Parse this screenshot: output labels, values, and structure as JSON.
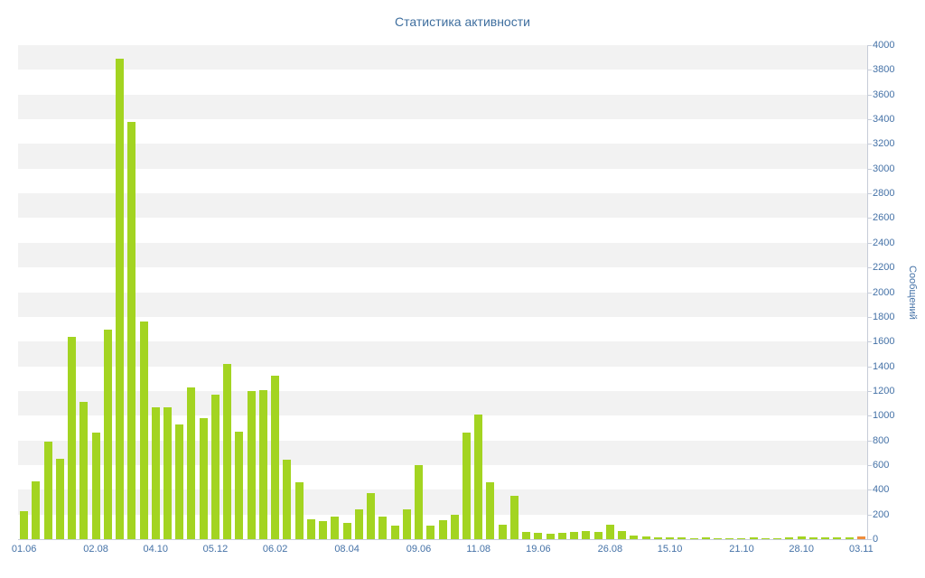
{
  "chart_data": {
    "type": "bar",
    "title": "Статистика активности",
    "ylabel": "Сообщений",
    "xlabel": "",
    "ylim": [
      0,
      4000
    ],
    "y_tick_step": 200,
    "grid": "alternating horizontal bands of 200 units",
    "legend": "none",
    "x_tick_labels": [
      "01.06",
      "02.08",
      "04.10",
      "05.12",
      "06.02",
      "08.04",
      "09.06",
      "11.08",
      "19.06",
      "26.08",
      "15.10",
      "21.10",
      "28.10",
      "03.11"
    ],
    "x_tick_bar_indices": [
      0,
      6,
      11,
      16,
      21,
      27,
      33,
      38,
      43,
      49,
      54,
      60,
      65,
      70
    ],
    "values": [
      230,
      470,
      790,
      650,
      1640,
      1110,
      860,
      1700,
      3890,
      3380,
      1760,
      1070,
      1070,
      930,
      1230,
      980,
      1170,
      1420,
      870,
      1200,
      1210,
      1320,
      640,
      460,
      160,
      145,
      180,
      135,
      240,
      370,
      180,
      110,
      240,
      600,
      110,
      150,
      200,
      860,
      1010,
      460,
      120,
      350,
      60,
      50,
      45,
      50,
      60,
      65,
      55,
      120,
      65,
      30,
      20,
      15,
      15,
      15,
      10,
      15,
      10,
      10,
      10,
      15,
      10,
      10,
      15,
      20,
      15,
      15,
      15,
      15,
      25
    ],
    "highlight_last_bar": true,
    "colors": {
      "bar": "#a3d421",
      "last_bar": "#ef8d3c",
      "band": "#f2f2f2",
      "axis_line": "#c6ccd8",
      "axis_text": "#4572a7",
      "title_text": "#3e6e9e"
    }
  }
}
